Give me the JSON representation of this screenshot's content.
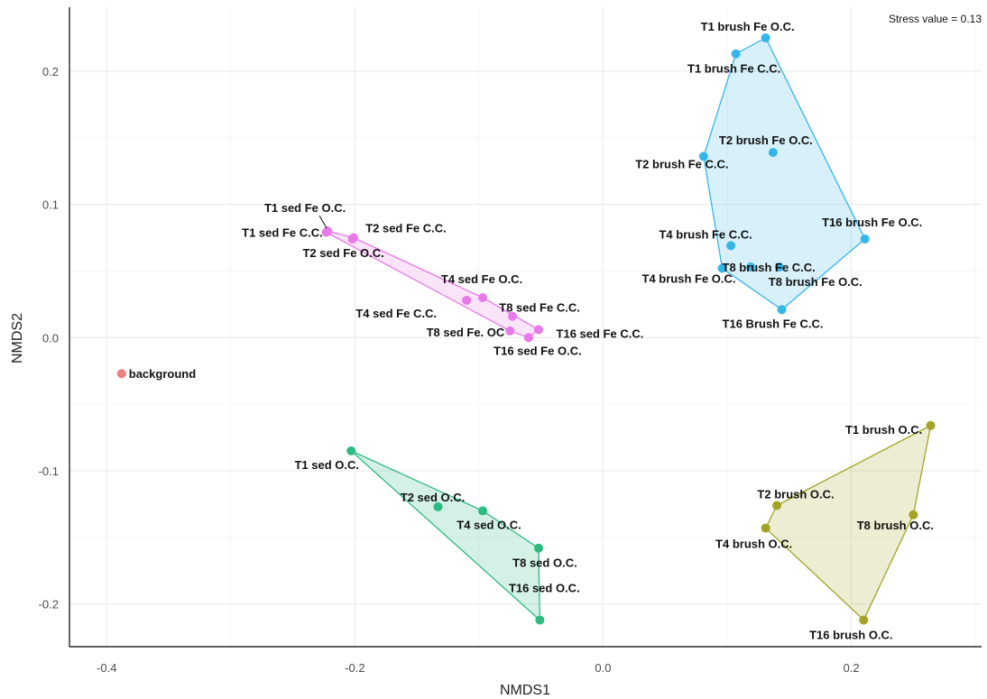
{
  "chart_data": {
    "type": "scatter",
    "annotation": "Stress value = 0.13",
    "xlabel": "NMDS1",
    "ylabel": "NMDS2",
    "xlim": [
      -0.43,
      0.305
    ],
    "ylim": [
      -0.232,
      0.248
    ],
    "xticks": [
      -0.4,
      -0.2,
      0.0,
      0.2
    ],
    "xtick_labels": [
      "-0.4",
      "-0.2",
      "0.0",
      "0.2"
    ],
    "yticks": [
      -0.2,
      -0.1,
      0.0,
      0.1,
      0.2
    ],
    "ytick_labels": [
      "-0.2",
      "-0.1",
      "0.0",
      "0.1",
      "0.2"
    ],
    "grid": true,
    "legend": "none",
    "groups": [
      {
        "color": "#35b6e8",
        "hull": true,
        "points": [
          {
            "x": 0.131,
            "y": 0.225,
            "label": "T1 brush Fe O.C."
          },
          {
            "x": 0.107,
            "y": 0.213,
            "label": "T1 brush Fe C.C."
          },
          {
            "x": 0.137,
            "y": 0.139,
            "label": "T2 brush Fe O.C."
          },
          {
            "x": 0.081,
            "y": 0.136,
            "label": "T2 brush Fe C.C."
          },
          {
            "x": 0.211,
            "y": 0.074,
            "label": "T16 brush Fe O.C."
          },
          {
            "x": 0.103,
            "y": 0.069,
            "label": "T4 brush Fe C.C."
          },
          {
            "x": 0.119,
            "y": 0.053,
            "label": "T8 brush Fe C.C."
          },
          {
            "x": 0.142,
            "y": 0.053,
            "label": "T8 brush Fe O.C."
          },
          {
            "x": 0.096,
            "y": 0.052,
            "label": "T4 brush Fe O.C."
          },
          {
            "x": 0.144,
            "y": 0.021,
            "label": "T16 Brush Fe C.C."
          }
        ]
      },
      {
        "color": "#e879e8",
        "hull": true,
        "points": [
          {
            "x": -0.222,
            "y": 0.08,
            "label": "T1 sed Fe O.C."
          },
          {
            "x": -0.223,
            "y": 0.079,
            "label": "T1 sed Fe C.C."
          },
          {
            "x": -0.201,
            "y": 0.075,
            "label": "T2 sed Fe C.C."
          },
          {
            "x": -0.202,
            "y": 0.074,
            "label": "T2 sed Fe O.C."
          },
          {
            "x": -0.097,
            "y": 0.03,
            "label": "T4 sed Fe O.C."
          },
          {
            "x": -0.11,
            "y": 0.028,
            "label": "T4 sed Fe C.C."
          },
          {
            "x": -0.073,
            "y": 0.016,
            "label": "T8 sed Fe C.C."
          },
          {
            "x": -0.052,
            "y": 0.006,
            "label": "T16 sed Fe C.C."
          },
          {
            "x": -0.075,
            "y": 0.005,
            "label": "T8 sed Fe. OC"
          },
          {
            "x": -0.06,
            "y": 0.0,
            "label": "T16 sed Fe O.C."
          }
        ]
      },
      {
        "color": "#f08080",
        "hull": false,
        "points": [
          {
            "x": -0.388,
            "y": -0.027,
            "label": "background"
          }
        ]
      },
      {
        "color": "#2dbb82",
        "hull": true,
        "points": [
          {
            "x": -0.203,
            "y": -0.085,
            "label": "T1 sed O.C."
          },
          {
            "x": -0.133,
            "y": -0.127,
            "label": "T2 sed O.C."
          },
          {
            "x": -0.097,
            "y": -0.13,
            "label": "T4 sed O.C."
          },
          {
            "x": -0.052,
            "y": -0.158,
            "label": "T8 sed O.C."
          },
          {
            "x": -0.051,
            "y": -0.212,
            "label": "T16 sed O.C."
          }
        ]
      },
      {
        "color": "#a3a325",
        "hull": true,
        "points": [
          {
            "x": 0.264,
            "y": -0.066,
            "label": "T1 brush O.C."
          },
          {
            "x": 0.14,
            "y": -0.126,
            "label": "T2 brush O.C."
          },
          {
            "x": 0.25,
            "y": -0.133,
            "label": "T8 brush O.C."
          },
          {
            "x": 0.131,
            "y": -0.143,
            "label": "T4 brush O.C."
          },
          {
            "x": 0.21,
            "y": -0.212,
            "label": "T16 brush O.C."
          }
        ]
      }
    ]
  }
}
